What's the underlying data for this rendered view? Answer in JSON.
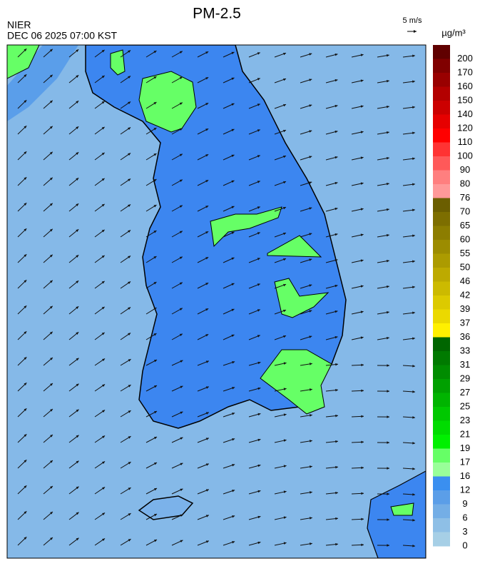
{
  "header": {
    "title": "PM-2.5",
    "agency": "NIER",
    "datetime": "DEC 06 2025 07:00 KST",
    "wind_scale": "5 m/s",
    "unit": "µg/m³"
  },
  "colorbar": {
    "labels": [
      "200",
      "170",
      "160",
      "150",
      "140",
      "120",
      "110",
      "100",
      "90",
      "80",
      "76",
      "70",
      "65",
      "60",
      "55",
      "50",
      "46",
      "42",
      "39",
      "37",
      "36",
      "33",
      "31",
      "29",
      "27",
      "25",
      "23",
      "21",
      "19",
      "17",
      "16",
      "12",
      "9",
      "6",
      "3",
      "0"
    ],
    "colors": [
      "#600000",
      "#800000",
      "#990000",
      "#b30000",
      "#cc0000",
      "#e60000",
      "#ff0000",
      "#ff3333",
      "#ff5959",
      "#ff7f7f",
      "#ff9999",
      "#6b5e00",
      "#7d6e00",
      "#8c7d00",
      "#9c8c00",
      "#ac9b00",
      "#bdaa00",
      "#ccba00",
      "#dcca00",
      "#ebd900",
      "#fff000",
      "#006600",
      "#007a00",
      "#008c00",
      "#00a000",
      "#00b400",
      "#00c800",
      "#00dc00",
      "#00f000",
      "#66ff66",
      "#99ff99",
      "#3a8ff0",
      "#5b9ee8",
      "#74aee6",
      "#8ebfe6",
      "#a6cfe6"
    ]
  }
}
